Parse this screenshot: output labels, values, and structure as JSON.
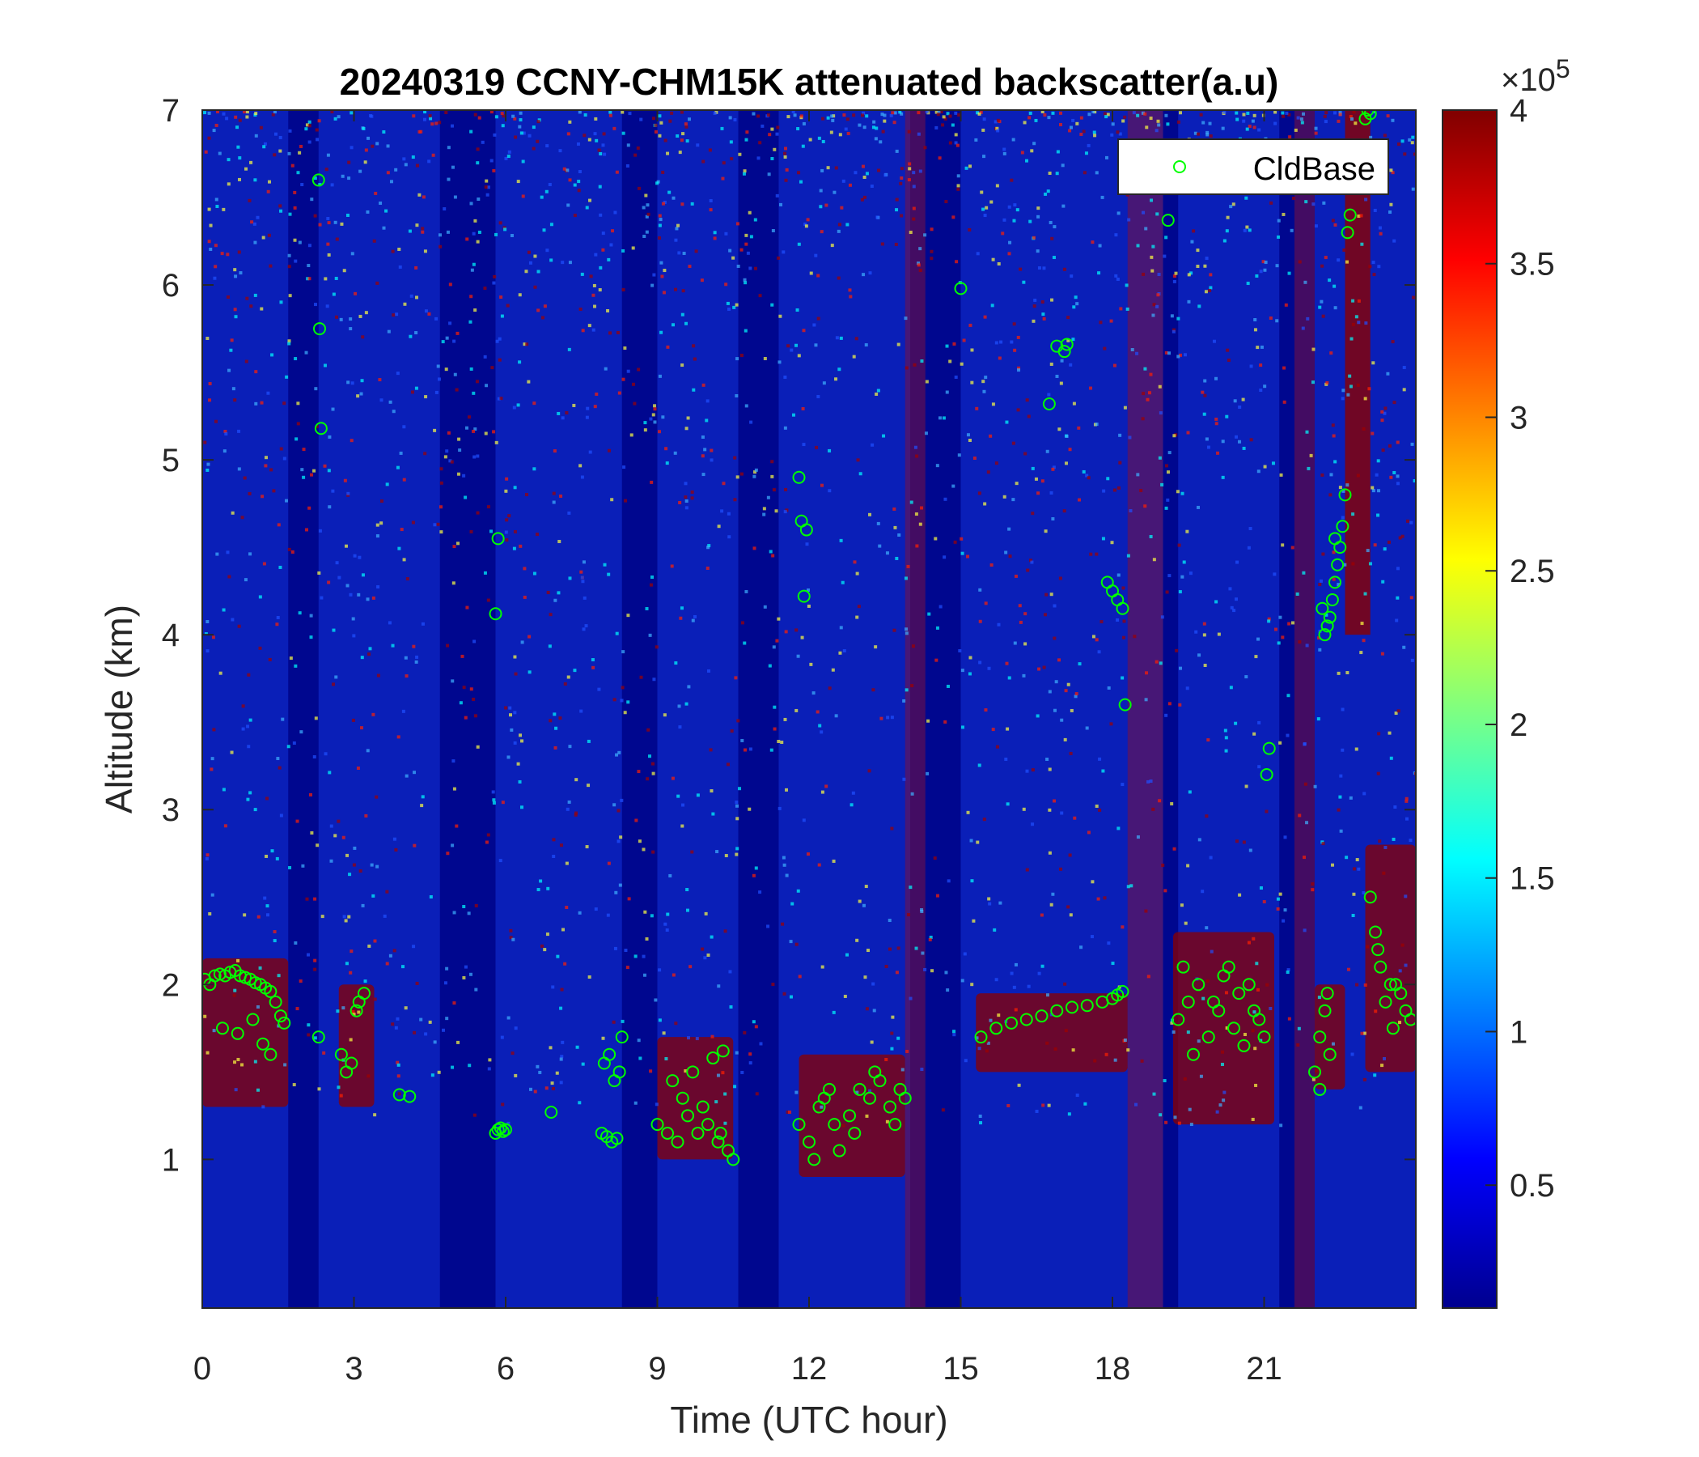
{
  "chart_data": {
    "type": "heatmap",
    "title": "20240319 CCNY-CHM15K attenuated backscatter(a.u)",
    "xlabel": "Time (UTC hour)",
    "ylabel": "Altitude (km)",
    "xlim": [
      0,
      24
    ],
    "ylim": [
      0.15,
      7
    ],
    "x_ticks": [
      0,
      3,
      6,
      9,
      12,
      15,
      18,
      21
    ],
    "y_ticks": [
      1,
      2,
      3,
      4,
      5,
      6,
      7
    ],
    "colorbar": {
      "colormap": "jet",
      "range": [
        10000,
        400000
      ],
      "ticks": [
        0.5,
        1,
        1.5,
        2,
        2.5,
        3,
        3.5,
        4
      ],
      "exponent_label": "×10",
      "exponent_power": "5"
    },
    "legend": {
      "entries": [
        "CldBase"
      ],
      "placement": "top-right",
      "marker_color": "#00ff00"
    },
    "grid": false,
    "cloud_base": {
      "name": "CldBase",
      "x": [
        0.05,
        0.15,
        0.25,
        0.35,
        0.45,
        0.55,
        0.65,
        0.75,
        0.85,
        0.95,
        1.05,
        1.15,
        1.25,
        1.35,
        1.45,
        1.55,
        1.62,
        0.4,
        0.7,
        1.0,
        1.2,
        1.35,
        2.3,
        2.75,
        2.85,
        2.95,
        3.05,
        3.1,
        3.2,
        3.9,
        4.1,
        5.8,
        5.85,
        5.9,
        5.95,
        6.0,
        6.9,
        7.9,
        8.0,
        8.1,
        8.2,
        8.25,
        8.3,
        7.95,
        8.05,
        8.15,
        9.0,
        9.2,
        9.4,
        9.6,
        9.8,
        10.0,
        10.2,
        10.4,
        10.5,
        9.3,
        9.7,
        10.1,
        10.3,
        9.5,
        9.9,
        10.25,
        11.8,
        12.0,
        12.2,
        12.4,
        12.6,
        12.8,
        13.0,
        13.2,
        13.4,
        13.6,
        13.8,
        13.9,
        12.1,
        12.5,
        12.9,
        13.3,
        13.7,
        12.3,
        15.4,
        15.7,
        16.0,
        16.3,
        16.6,
        16.9,
        17.2,
        17.5,
        17.8,
        18.0,
        18.1,
        18.2,
        19.3,
        19.5,
        19.7,
        19.9,
        20.1,
        20.3,
        20.5,
        20.7,
        20.9,
        21.0,
        19.6,
        20.0,
        20.4,
        20.8,
        19.4,
        20.2,
        20.6,
        22.0,
        22.1,
        22.2,
        22.3,
        22.1,
        22.25,
        23.1,
        23.2,
        23.3,
        23.4,
        23.5,
        23.6,
        23.7,
        23.8,
        23.9,
        23.25,
        23.55,
        2.3,
        2.32,
        2.35,
        5.85,
        5.8,
        11.8,
        11.85,
        11.9,
        11.95,
        15.0,
        16.75,
        16.9,
        17.05,
        17.1,
        17.9,
        18.0,
        18.1,
        18.2,
        18.25,
        19.1,
        21.05,
        21.1,
        22.2,
        22.3,
        22.4,
        22.5,
        22.55,
        22.35,
        22.25,
        22.45,
        22.6,
        22.65,
        22.7,
        22.15,
        22.4,
        23.0,
        23.05,
        23.1
      ],
      "y": [
        2.03,
        2.0,
        2.05,
        2.06,
        2.05,
        2.07,
        2.08,
        2.05,
        2.04,
        2.03,
        2.01,
        2.0,
        1.98,
        1.96,
        1.9,
        1.82,
        1.78,
        1.75,
        1.72,
        1.8,
        1.66,
        1.6,
        1.7,
        1.6,
        1.5,
        1.55,
        1.85,
        1.9,
        1.95,
        1.37,
        1.36,
        1.15,
        1.17,
        1.18,
        1.16,
        1.17,
        1.27,
        1.15,
        1.13,
        1.1,
        1.12,
        1.5,
        1.7,
        1.55,
        1.6,
        1.45,
        1.2,
        1.15,
        1.1,
        1.25,
        1.15,
        1.2,
        1.1,
        1.05,
        1.0,
        1.45,
        1.5,
        1.58,
        1.62,
        1.35,
        1.3,
        1.15,
        1.2,
        1.1,
        1.3,
        1.4,
        1.05,
        1.25,
        1.4,
        1.35,
        1.45,
        1.3,
        1.4,
        1.35,
        1.0,
        1.2,
        1.15,
        1.5,
        1.2,
        1.35,
        1.7,
        1.75,
        1.78,
        1.8,
        1.82,
        1.85,
        1.87,
        1.88,
        1.9,
        1.92,
        1.94,
        1.96,
        1.8,
        1.9,
        2.0,
        1.7,
        1.85,
        2.1,
        1.95,
        2.0,
        1.8,
        1.7,
        1.6,
        1.9,
        1.75,
        1.85,
        2.1,
        2.05,
        1.65,
        1.5,
        1.7,
        1.85,
        1.6,
        1.4,
        1.95,
        2.5,
        2.3,
        2.1,
        1.9,
        2.0,
        2.0,
        1.95,
        1.85,
        1.8,
        2.2,
        1.75,
        6.6,
        5.75,
        5.18,
        4.55,
        4.12,
        4.9,
        4.65,
        4.22,
        4.6,
        5.98,
        5.32,
        5.65,
        5.62,
        5.66,
        4.3,
        4.25,
        4.2,
        4.15,
        3.6,
        6.37,
        3.2,
        3.35,
        4.0,
        4.1,
        4.3,
        4.5,
        4.62,
        4.2,
        4.05,
        4.4,
        4.8,
        6.3,
        6.4,
        4.15,
        4.55,
        6.95,
        7.0,
        6.98
      ]
    }
  }
}
